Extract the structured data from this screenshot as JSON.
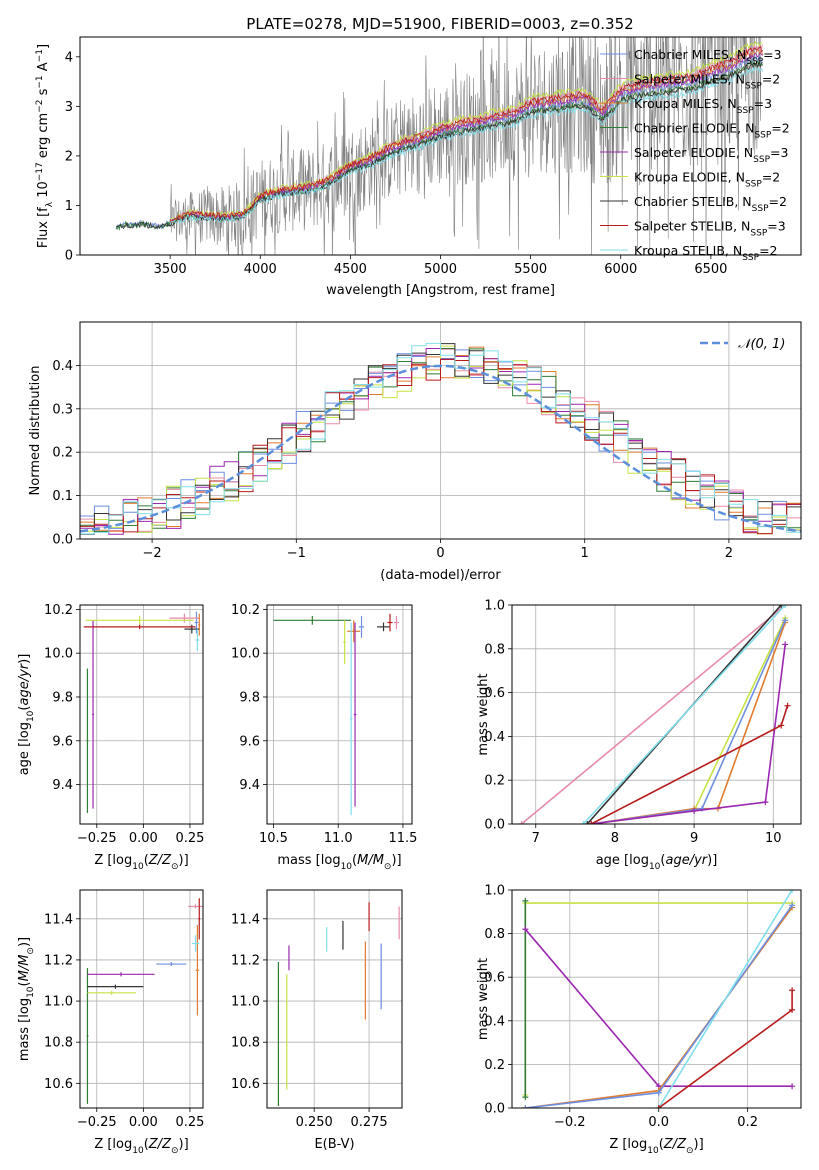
{
  "figure_title": "PLATE=0278, MJD=51900, FIBERID=0003, z=0.352",
  "colors": {
    "Chabrier MILES": "#6c8fe0",
    "Salpeter MILES": "#e88aa9",
    "Kroupa MILES": "#e07b2e",
    "Chabrier ELODIE": "#2e7d32",
    "Salpeter ELODIE": "#9c27b0",
    "Kroupa ELODIE": "#c6e245",
    "Chabrier STELIB": "#333333",
    "Salpeter STELIB": "#b71c1c",
    "Kroupa STELIB": "#80deea",
    "data": "#808080",
    "normal": "#5b8fdb"
  },
  "chart_data": [
    {
      "id": "spectrum",
      "type": "line",
      "xlabel": "wavelength [Angstrom, rest frame]",
      "ylabel": "Flux [f_λ 10^-17 erg cm^-2 s^-1 A^-1]",
      "xlim": [
        3000,
        7000
      ],
      "ylim": [
        0,
        4.4
      ],
      "xticks": [
        "3500",
        "4000",
        "4500",
        "5000",
        "5500",
        "6000",
        "6500"
      ],
      "yticks": [
        "0",
        "1",
        "2",
        "3",
        "4"
      ],
      "legend": {
        "placement": "upper-right",
        "entries": [
          {
            "name": "Chabrier MILES",
            "label": "Chabrier MILES, N",
            "sub": "SSP",
            "suffix": "=3"
          },
          {
            "name": "Salpeter MILES",
            "label": "Salpeter MILES, N",
            "sub": "SSP",
            "suffix": "=2"
          },
          {
            "name": "Kroupa MILES",
            "label": "Kroupa MILES, N",
            "sub": "SSP",
            "suffix": "=3"
          },
          {
            "name": "Chabrier ELODIE",
            "label": "Chabrier ELODIE, N",
            "sub": "SSP",
            "suffix": "=2"
          },
          {
            "name": "Salpeter ELODIE",
            "label": "Salpeter ELODIE, N",
            "sub": "SSP",
            "suffix": "=3"
          },
          {
            "name": "Kroupa ELODIE",
            "label": "Kroupa ELODIE, N",
            "sub": "SSP",
            "suffix": "=2"
          },
          {
            "name": "Chabrier STELIB",
            "label": "Chabrier STELIB, N",
            "sub": "SSP",
            "suffix": "=2"
          },
          {
            "name": "Salpeter STELIB",
            "label": "Salpeter STELIB, N",
            "sub": "SSP",
            "suffix": "=3"
          },
          {
            "name": "Kroupa STELIB",
            "label": "Kroupa STELIB, N",
            "sub": "SSP",
            "suffix": "=2"
          }
        ]
      },
      "model_continuum": {
        "x": [
          3200,
          3250,
          3300,
          3350,
          3400,
          3450,
          3500,
          3600,
          3700,
          3800,
          3900,
          3950,
          4000,
          4100,
          4200,
          4300,
          4400,
          4500,
          4600,
          4700,
          4800,
          4900,
          5000,
          5100,
          5200,
          5300,
          5400,
          5500,
          5600,
          5700,
          5800,
          5900,
          6000,
          6100,
          6200,
          6300,
          6400,
          6500,
          6600,
          6700,
          6750
        ],
        "y": [
          0.55,
          0.62,
          0.6,
          0.65,
          0.6,
          0.58,
          0.65,
          0.8,
          0.78,
          0.75,
          0.8,
          0.95,
          1.15,
          1.25,
          1.3,
          1.35,
          1.5,
          1.75,
          1.85,
          2.05,
          2.2,
          2.3,
          2.45,
          2.55,
          2.6,
          2.7,
          2.75,
          2.95,
          3.0,
          3.05,
          3.1,
          2.8,
          3.2,
          3.3,
          3.35,
          3.4,
          3.45,
          3.6,
          3.7,
          3.9,
          3.95
        ]
      },
      "data_trace": {
        "noise_start": 3500,
        "x": [
          3200,
          3500,
          4000,
          4500,
          5000,
          5500,
          6000,
          6500,
          6800
        ],
        "noise_amplitude": [
          0.05,
          0.4,
          0.8,
          0.9,
          1.1,
          1.3,
          1.6,
          1.8,
          2.0
        ]
      }
    },
    {
      "id": "residuals",
      "type": "histogram",
      "xlabel": "(data-model)/error",
      "ylabel": "Normed distribution",
      "xlim": [
        -2.5,
        2.5
      ],
      "ylim": [
        0,
        0.5
      ],
      "xticks": [
        "−2",
        "−1",
        "0",
        "1",
        "2"
      ],
      "yticks": [
        "0.0",
        "0.1",
        "0.2",
        "0.3",
        "0.4"
      ],
      "legend": {
        "placement": "upper-right",
        "label": "𝒩(0, 1)"
      },
      "bin_width": 0.1,
      "bin_start": -2.5
    },
    {
      "id": "age-vs-Z",
      "type": "errorbar",
      "xlabel": "Z [log10(Z/Z⊙)]",
      "ylabel": "age [log10(age/yr)]",
      "xlim": [
        -0.34,
        0.32
      ],
      "ylim": [
        9.22,
        10.22
      ],
      "xticks": [
        "−0.25",
        "0.00",
        "0.25"
      ],
      "yticks": [
        "9.4",
        "9.6",
        "9.8",
        "10.0",
        "10.2"
      ],
      "points": [
        {
          "s": "Chabrier MILES",
          "x": 0.285,
          "y": 10.14,
          "xe": 0.01,
          "ye": 0.05
        },
        {
          "s": "Salpeter MILES",
          "x": 0.22,
          "y": 10.16,
          "xe": 0.08,
          "ye": 0.02
        },
        {
          "s": "Kroupa MILES",
          "x": 0.3,
          "y": 10.13,
          "xe": 0.005,
          "ye": 0.05
        },
        {
          "s": "Chabrier ELODIE",
          "x": -0.3,
          "y": 9.6,
          "xe": 0.005,
          "ye": 0.33
        },
        {
          "s": "Salpeter ELODIE",
          "x": -0.27,
          "y": 9.72,
          "xe": 0.005,
          "ye": 0.43
        },
        {
          "s": "Kroupa ELODIE",
          "x": -0.02,
          "y": 10.15,
          "xe": 0.29,
          "ye": 0.02
        },
        {
          "s": "Chabrier STELIB",
          "x": 0.26,
          "y": 10.11,
          "xe": 0.04,
          "ye": 0.02
        },
        {
          "s": "Salpeter STELIB",
          "x": -0.02,
          "y": 10.12,
          "xe": 0.3,
          "ye": 0.01
        },
        {
          "s": "Kroupa STELIB",
          "x": 0.29,
          "y": 10.06,
          "xe": 0.01,
          "ye": 0.05
        }
      ]
    },
    {
      "id": "age-vs-mass",
      "type": "errorbar",
      "xlabel": "mass [log10(M/M⊙)]",
      "ylabel": "",
      "xlim": [
        10.45,
        11.57
      ],
      "ylim": [
        9.22,
        10.22
      ],
      "xticks": [
        "10.5",
        "11.0",
        "11.5"
      ],
      "yticks": [
        "9.4",
        "9.6",
        "9.8",
        "10.0",
        "10.2"
      ],
      "points": [
        {
          "s": "Chabrier MILES",
          "x": 11.18,
          "y": 10.12,
          "xe": 0.02,
          "ye": 0.05
        },
        {
          "s": "Salpeter MILES",
          "x": 11.45,
          "y": 10.14,
          "xe": 0.02,
          "ye": 0.03
        },
        {
          "s": "Kroupa MILES",
          "x": 11.12,
          "y": 10.1,
          "xe": 0.05,
          "ye": 0.05
        },
        {
          "s": "Chabrier ELODIE",
          "x": 10.8,
          "y": 10.15,
          "xe": 0.3,
          "ye": 0.02
        },
        {
          "s": "Salpeter ELODIE",
          "x": 11.13,
          "y": 9.72,
          "xe": 0.01,
          "ye": 0.42
        },
        {
          "s": "Kroupa ELODIE",
          "x": 11.05,
          "y": 10.05,
          "xe": 0.01,
          "ye": 0.1
        },
        {
          "s": "Chabrier STELIB",
          "x": 11.35,
          "y": 10.12,
          "xe": 0.05,
          "ye": 0.02
        },
        {
          "s": "Salpeter STELIB",
          "x": 11.4,
          "y": 10.14,
          "xe": 0.02,
          "ye": 0.04
        },
        {
          "s": "Kroupa STELIB",
          "x": 11.1,
          "y": 9.7,
          "xe": 0.01,
          "ye": 0.44
        }
      ]
    },
    {
      "id": "cumulative-weight-vs-age",
      "type": "line",
      "xlabel": "age [log10(age/yr)]",
      "ylabel": "mass weight",
      "xlim": [
        6.7,
        10.35
      ],
      "ylim": [
        0,
        1
      ],
      "xticks": [
        "7",
        "8",
        "9",
        "10"
      ],
      "yticks": [
        "0.0",
        "0.2",
        "0.4",
        "0.6",
        "0.8",
        "1.0"
      ],
      "series": [
        {
          "name": "Salpeter MILES",
          "x": [
            6.82,
            10.15
          ],
          "y": [
            0.0,
            1.0
          ]
        },
        {
          "name": "Chabrier STELIB",
          "x": [
            7.65,
            10.1
          ],
          "y": [
            0.0,
            1.0
          ]
        },
        {
          "name": "Kroupa STELIB",
          "x": [
            7.6,
            10.15
          ],
          "y": [
            0.0,
            1.0
          ]
        },
        {
          "name": "Kroupa ELODIE",
          "x": [
            7.7,
            9.0,
            10.15
          ],
          "y": [
            0.0,
            0.06,
            0.94
          ]
        },
        {
          "name": "Kroupa MILES",
          "x": [
            7.7,
            9.0,
            9.3,
            10.15
          ],
          "y": [
            0.0,
            0.07,
            0.07,
            0.92
          ]
        },
        {
          "name": "Chabrier MILES",
          "x": [
            7.7,
            9.1,
            10.15
          ],
          "y": [
            0.0,
            0.07,
            0.93
          ]
        },
        {
          "name": "Salpeter ELODIE",
          "x": [
            7.7,
            9.0,
            9.9,
            10.15
          ],
          "y": [
            0.0,
            0.06,
            0.1,
            0.82
          ]
        },
        {
          "name": "Salpeter STELIB",
          "x": [
            7.7,
            10.1,
            10.18
          ],
          "y": [
            0.0,
            0.45,
            0.54
          ]
        }
      ]
    },
    {
      "id": "mass-vs-Z",
      "type": "errorbar",
      "xlabel": "Z [log10(Z/Z⊙)]",
      "ylabel": "mass [log10(M/M⊙)]",
      "xlim": [
        -0.34,
        0.32
      ],
      "ylim": [
        10.48,
        11.54
      ],
      "xticks": [
        "−0.25",
        "0.00",
        "0.25"
      ],
      "yticks": [
        "10.6",
        "10.8",
        "11.0",
        "11.2",
        "11.4"
      ],
      "points": [
        {
          "s": "Chabrier MILES",
          "x": 0.15,
          "y": 11.18,
          "xe": 0.08,
          "ye": 0.01
        },
        {
          "s": "Salpeter MILES",
          "x": 0.28,
          "y": 11.46,
          "xe": 0.04,
          "ye": 0.01
        },
        {
          "s": "Kroupa MILES",
          "x": 0.29,
          "y": 11.15,
          "xe": 0.01,
          "ye": 0.22
        },
        {
          "s": "Chabrier ELODIE",
          "x": -0.3,
          "y": 10.83,
          "xe": 0.005,
          "ye": 0.33
        },
        {
          "s": "Salpeter ELODIE",
          "x": -0.12,
          "y": 11.13,
          "xe": 0.18,
          "ye": 0.01
        },
        {
          "s": "Kroupa ELODIE",
          "x": -0.17,
          "y": 11.04,
          "xe": 0.13,
          "ye": 0.01
        },
        {
          "s": "Chabrier STELIB",
          "x": -0.15,
          "y": 11.07,
          "xe": 0.15,
          "ye": 0.01
        },
        {
          "s": "Salpeter STELIB",
          "x": 0.3,
          "y": 11.4,
          "xe": 0.005,
          "ye": 0.1
        },
        {
          "s": "Kroupa STELIB",
          "x": 0.28,
          "y": 11.28,
          "xe": 0.02,
          "ye": 0.04
        }
      ]
    },
    {
      "id": "mass-vs-EBV",
      "type": "errorbar",
      "xlabel": "E(B-V)",
      "ylabel": "",
      "xlim": [
        0.2285,
        0.29
      ],
      "ylim": [
        10.48,
        11.54
      ],
      "xticks": [
        "0.250",
        "0.275"
      ],
      "yticks": [
        "10.6",
        "10.8",
        "11.0",
        "11.2",
        "11.4"
      ],
      "points": [
        {
          "s": "Chabrier MILES",
          "x": 0.2805,
          "y": 11.12,
          "xe": 0,
          "ye": 0.16
        },
        {
          "s": "Salpeter MILES",
          "x": 0.2887,
          "y": 11.38,
          "xe": 0,
          "ye": 0.08
        },
        {
          "s": "Kroupa MILES",
          "x": 0.2733,
          "y": 11.1,
          "xe": 0,
          "ye": 0.19
        },
        {
          "s": "Chabrier ELODIE",
          "x": 0.2337,
          "y": 10.84,
          "xe": 0,
          "ye": 0.35
        },
        {
          "s": "Salpeter ELODIE",
          "x": 0.2385,
          "y": 11.21,
          "xe": 0,
          "ye": 0.06
        },
        {
          "s": "Kroupa ELODIE",
          "x": 0.2375,
          "y": 10.85,
          "xe": 0,
          "ye": 0.28
        },
        {
          "s": "Chabrier STELIB",
          "x": 0.2631,
          "y": 11.32,
          "xe": 0,
          "ye": 0.07
        },
        {
          "s": "Salpeter STELIB",
          "x": 0.275,
          "y": 11.41,
          "xe": 0,
          "ye": 0.07
        },
        {
          "s": "Kroupa STELIB",
          "x": 0.2557,
          "y": 11.3,
          "xe": 0,
          "ye": 0.06
        }
      ]
    },
    {
      "id": "cumulative-weight-vs-Z",
      "type": "line",
      "xlabel": "Z [log10(Z/Z⊙)]",
      "ylabel": "mass weight",
      "xlim": [
        -0.33,
        0.32
      ],
      "ylim": [
        0,
        1
      ],
      "xticks": [
        "−0.2",
        "0.0",
        "0.2"
      ],
      "yticks": [
        "0.0",
        "0.2",
        "0.4",
        "0.6",
        "0.8",
        "1.0"
      ],
      "series": [
        {
          "name": "Kroupa ELODIE",
          "x": [
            -0.3,
            -0.3,
            0.3
          ],
          "y": [
            0.06,
            0.94,
            0.94
          ]
        },
        {
          "name": "Chabrier ELODIE",
          "x": [
            -0.3,
            -0.3
          ],
          "y": [
            0.05,
            0.95
          ]
        },
        {
          "name": "Salpeter ELODIE",
          "x": [
            -0.3,
            0.0,
            0.3
          ],
          "y": [
            0.82,
            0.1,
            0.1
          ]
        },
        {
          "name": "Kroupa MILES",
          "x": [
            -0.3,
            0.0,
            0.3
          ],
          "y": [
            0.0,
            0.08,
            0.92
          ]
        },
        {
          "name": "Chabrier MILES",
          "x": [
            -0.3,
            0.0,
            0.3
          ],
          "y": [
            0.0,
            0.07,
            0.93
          ]
        },
        {
          "name": "Kroupa STELIB",
          "x": [
            0.0,
            0.3
          ],
          "y": [
            0.0,
            1.0
          ]
        },
        {
          "name": "Salpeter STELIB",
          "x": [
            0.0,
            0.3,
            0.3
          ],
          "y": [
            0.0,
            0.45,
            0.54
          ]
        }
      ]
    }
  ]
}
